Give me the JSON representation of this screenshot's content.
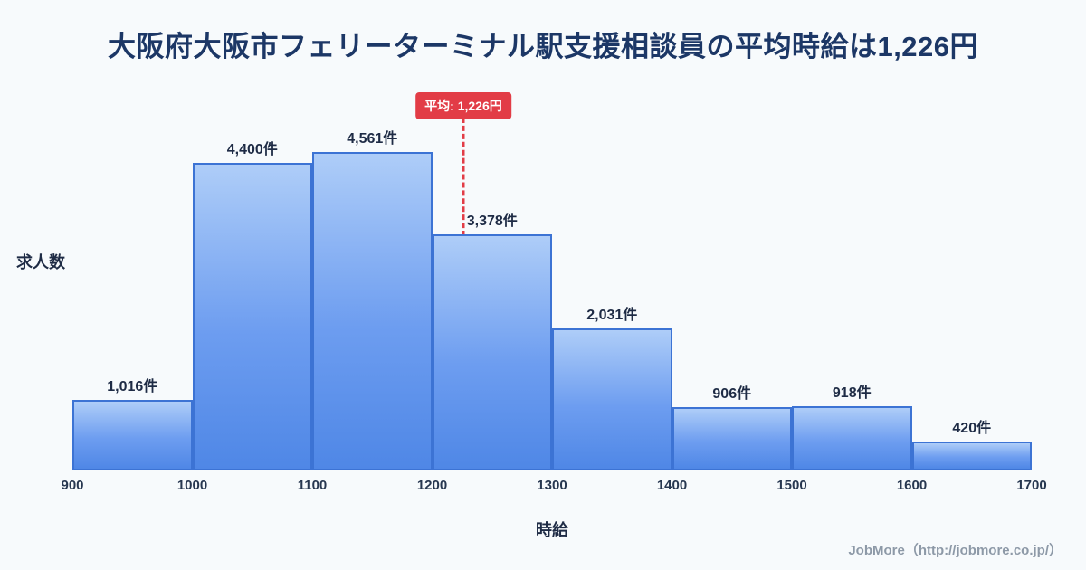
{
  "title": "大阪府大阪市フェリーターミナル駅支援相談員の平均時給は1,226円",
  "footer": "JobMore（http://jobmore.co.jp/）",
  "colors": {
    "background": "#f7fafc",
    "title_text": "#1c3766",
    "bar_fill_top": "#aecdf8",
    "bar_fill_bottom": "#4f87e6",
    "bar_border": "#3c73d4",
    "average_line": "#e23c46",
    "average_badge_bg": "#e23c46",
    "average_badge_text": "#ffffff",
    "footer_text": "#8d99a7"
  },
  "chart_data": {
    "type": "bar",
    "title": "大阪府大阪市フェリーターミナル駅支援相談員の平均時給は1,226円",
    "xlabel": "時給",
    "ylabel": "求人数",
    "x_range": [
      900,
      1700
    ],
    "x_ticks": [
      "900",
      "1000",
      "1100",
      "1200",
      "1300",
      "1400",
      "1500",
      "1600",
      "1700"
    ],
    "bins": [
      [
        900,
        1000
      ],
      [
        1000,
        1100
      ],
      [
        1100,
        1200
      ],
      [
        1200,
        1300
      ],
      [
        1300,
        1400
      ],
      [
        1400,
        1500
      ],
      [
        1500,
        1600
      ],
      [
        1600,
        1700
      ]
    ],
    "values": [
      1016,
      4400,
      4561,
      3378,
      2031,
      906,
      918,
      420
    ],
    "bar_labels": [
      "1,016件",
      "4,400件",
      "4,561件",
      "3,378件",
      "2,031件",
      "906件",
      "918件",
      "420件"
    ],
    "average": {
      "value": 1226,
      "label": "平均: 1,226円"
    },
    "grid": false,
    "legend": false
  }
}
